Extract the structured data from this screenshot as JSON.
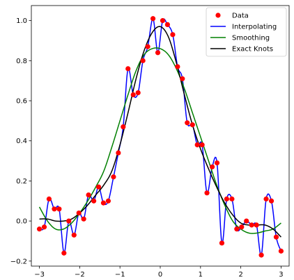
{
  "chart_data": {
    "type": "line",
    "title": "",
    "xlabel": "",
    "ylabel": "",
    "xlim": [
      -3.2,
      3.2
    ],
    "ylim": [
      -0.225,
      1.075
    ],
    "xticks": [
      -3,
      -2,
      -1,
      0,
      1,
      2,
      3
    ],
    "xtick_labels": [
      "−3",
      "−2",
      "−1",
      "0",
      "1",
      "2",
      "3"
    ],
    "yticks": [
      -0.2,
      0.0,
      0.2,
      0.4,
      0.6,
      0.8,
      1.0
    ],
    "ytick_labels": [
      "−0.2",
      "0.0",
      "0.2",
      "0.4",
      "0.6",
      "0.8",
      "1.0"
    ],
    "grid": false,
    "legend_position": "top-right",
    "series": [
      {
        "name": "Data",
        "kind": "scatter",
        "color": "#ff0000",
        "x": [
          -3.0,
          -2.88,
          -2.76,
          -2.63,
          -2.51,
          -2.39,
          -2.27,
          -2.14,
          -2.02,
          -1.9,
          -1.78,
          -1.65,
          -1.53,
          -1.41,
          -1.29,
          -1.16,
          -1.04,
          -0.92,
          -0.8,
          -0.67,
          -0.55,
          -0.43,
          -0.31,
          -0.18,
          -0.06,
          0.06,
          0.18,
          0.31,
          0.43,
          0.55,
          0.67,
          0.8,
          0.92,
          1.04,
          1.16,
          1.29,
          1.41,
          1.53,
          1.65,
          1.78,
          1.9,
          2.02,
          2.14,
          2.27,
          2.39,
          2.51,
          2.63,
          2.76,
          2.88,
          3.0
        ],
        "y": [
          -0.04,
          -0.03,
          0.11,
          0.06,
          0.06,
          -0.16,
          0.0,
          -0.07,
          0.04,
          0.01,
          0.13,
          0.1,
          0.17,
          0.09,
          0.1,
          0.22,
          0.34,
          0.47,
          0.76,
          0.63,
          0.64,
          0.8,
          0.87,
          1.01,
          0.84,
          1.0,
          0.98,
          0.93,
          0.77,
          0.71,
          0.49,
          0.48,
          0.38,
          0.38,
          0.14,
          0.27,
          0.29,
          -0.11,
          0.11,
          0.11,
          -0.04,
          -0.03,
          0.0,
          -0.02,
          -0.02,
          -0.17,
          0.11,
          0.1,
          -0.08,
          -0.15
        ]
      },
      {
        "name": "Interpolating",
        "kind": "interp",
        "color": "#0000ff"
      },
      {
        "name": "Smoothing",
        "kind": "line",
        "color": "#008000",
        "x": [
          -3.0,
          -2.8,
          -2.6,
          -2.4,
          -2.2,
          -2.0,
          -1.8,
          -1.6,
          -1.4,
          -1.2,
          -1.0,
          -0.8,
          -0.6,
          -0.4,
          -0.2,
          0.0,
          0.2,
          0.4,
          0.6,
          0.8,
          1.0,
          1.2,
          1.4,
          1.6,
          1.8,
          2.0,
          2.2,
          2.4,
          2.6,
          2.8,
          3.0
        ],
        "y": [
          0.07,
          0.0,
          -0.04,
          -0.04,
          -0.01,
          0.04,
          0.1,
          0.17,
          0.25,
          0.37,
          0.5,
          0.63,
          0.75,
          0.83,
          0.86,
          0.86,
          0.83,
          0.76,
          0.66,
          0.54,
          0.42,
          0.3,
          0.18,
          0.08,
          0.0,
          -0.04,
          -0.06,
          -0.06,
          -0.05,
          -0.04,
          -0.01
        ]
      },
      {
        "name": "Exact Knots",
        "kind": "line",
        "color": "#000000",
        "x": [
          -3.0,
          -2.8,
          -2.6,
          -2.4,
          -2.2,
          -2.0,
          -1.8,
          -1.6,
          -1.4,
          -1.2,
          -1.0,
          -0.8,
          -0.6,
          -0.4,
          -0.2,
          0.0,
          0.2,
          0.4,
          0.6,
          0.8,
          1.0,
          1.2,
          1.4,
          1.6,
          1.8,
          2.0,
          2.2,
          2.4,
          2.6,
          2.8,
          3.0
        ],
        "y": [
          0.01,
          0.01,
          0.0,
          0.0,
          0.01,
          0.04,
          0.08,
          0.13,
          0.18,
          0.25,
          0.38,
          0.54,
          0.71,
          0.85,
          0.94,
          0.97,
          0.92,
          0.79,
          0.63,
          0.48,
          0.36,
          0.26,
          0.17,
          0.09,
          0.03,
          -0.01,
          -0.02,
          -0.02,
          -0.02,
          -0.04,
          -0.08
        ]
      }
    ]
  }
}
